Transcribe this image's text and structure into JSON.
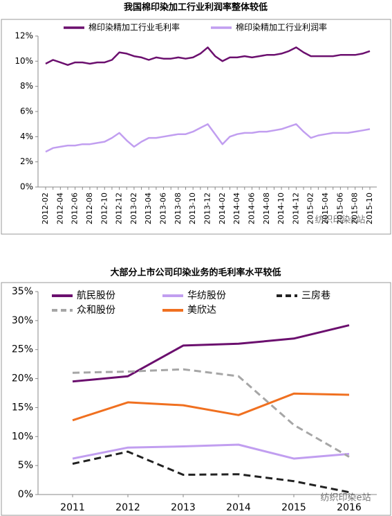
{
  "chart_data": [
    {
      "type": "line",
      "title": "我国棉印染加工行业利润率整体较低",
      "categories": [
        "2012-02",
        null,
        "2012-04",
        null,
        "2012-06",
        null,
        "2012-08",
        null,
        "2012-10",
        null,
        "2012-12",
        null,
        "2013-02",
        null,
        "2013-04",
        null,
        "2013-06",
        null,
        "2013-08",
        null,
        "2013-10",
        null,
        "2013-12",
        null,
        "2014-02",
        null,
        "2014-04",
        null,
        "2014-06",
        null,
        "2014-08",
        null,
        "2014-10",
        null,
        "2014-12",
        null,
        "2015-02",
        null,
        "2015-04",
        null,
        "2015-06",
        null,
        "2015-08",
        null,
        "2015-10"
      ],
      "series": [
        {
          "name": "棉印染精加工行业毛利率",
          "color": "#6b0f6e",
          "style": "solid",
          "values": [
            9.8,
            10.1,
            9.9,
            9.7,
            9.9,
            9.9,
            9.8,
            9.9,
            9.9,
            10.1,
            10.7,
            10.6,
            10.4,
            10.3,
            10.1,
            10.3,
            10.2,
            10.2,
            10.3,
            10.2,
            10.3,
            10.6,
            11.1,
            10.4,
            10.0,
            10.3,
            10.3,
            10.4,
            10.3,
            10.4,
            10.5,
            10.5,
            10.6,
            10.8,
            11.1,
            10.7,
            10.4,
            10.4,
            10.4,
            10.4,
            10.5,
            10.5,
            10.5,
            10.6,
            10.8
          ]
        },
        {
          "name": "棉印染精加工行业利润率",
          "color": "#c19ef0",
          "style": "solid",
          "values": [
            2.8,
            3.1,
            3.2,
            3.3,
            3.3,
            3.4,
            3.4,
            3.5,
            3.6,
            3.9,
            4.3,
            3.7,
            3.2,
            3.6,
            3.9,
            3.9,
            4.0,
            4.1,
            4.2,
            4.2,
            4.4,
            4.7,
            5.0,
            4.2,
            3.4,
            4.0,
            4.2,
            4.3,
            4.3,
            4.4,
            4.4,
            4.5,
            4.6,
            4.8,
            5.0,
            4.4,
            3.9,
            4.1,
            4.2,
            4.3,
            4.3,
            4.3,
            4.4,
            4.5,
            4.6
          ]
        }
      ],
      "ylim": [
        0,
        12
      ],
      "yticks": [
        {
          "value": 0,
          "label": "0%"
        },
        {
          "value": 2,
          "label": "2%"
        },
        {
          "value": 4,
          "label": "4%"
        },
        {
          "value": 6,
          "label": "6%"
        },
        {
          "value": 8,
          "label": "8%"
        },
        {
          "value": 10,
          "label": "10%"
        },
        {
          "value": 12,
          "label": "12%"
        }
      ],
      "grid": false,
      "legend": "top",
      "watermark": "纺织印染e站"
    },
    {
      "type": "line",
      "title": "大部分上市公司印染业务的毛利率水平较低",
      "categories": [
        "2011",
        "2012",
        "2013",
        "2014",
        "2015",
        "2016"
      ],
      "series": [
        {
          "name": "航民股份",
          "color": "#6b0f6e",
          "style": "solid",
          "values": [
            19.5,
            20.4,
            25.7,
            26.0,
            26.9,
            29.2
          ]
        },
        {
          "name": "华纺股份",
          "color": "#c19ef0",
          "style": "solid",
          "values": [
            6.2,
            8.1,
            8.3,
            8.6,
            6.2,
            7.0
          ]
        },
        {
          "name": "三房巷",
          "color": "#222222",
          "style": "dashed",
          "values": [
            5.3,
            7.4,
            3.4,
            3.5,
            2.3,
            0.4
          ]
        },
        {
          "name": "众和股份",
          "color": "#a6a6a6",
          "style": "dashed",
          "values": [
            21.0,
            21.2,
            21.6,
            20.4,
            12.0,
            6.5
          ]
        },
        {
          "name": "美欣达",
          "color": "#f07020",
          "style": "solid",
          "values": [
            12.8,
            15.9,
            15.4,
            13.7,
            17.4,
            17.2
          ]
        }
      ],
      "ylim": [
        0,
        35
      ],
      "yticks": [
        {
          "value": 0,
          "label": "0%"
        },
        {
          "value": 5,
          "label": "5%"
        },
        {
          "value": 10,
          "label": "10%"
        },
        {
          "value": 15,
          "label": "15%"
        },
        {
          "value": 20,
          "label": "20%"
        },
        {
          "value": 25,
          "label": "25%"
        },
        {
          "value": 30,
          "label": "30%"
        },
        {
          "value": 35,
          "label": "35%"
        }
      ],
      "grid": false,
      "legend": "top-left",
      "watermark": "纺织印染e站"
    }
  ]
}
